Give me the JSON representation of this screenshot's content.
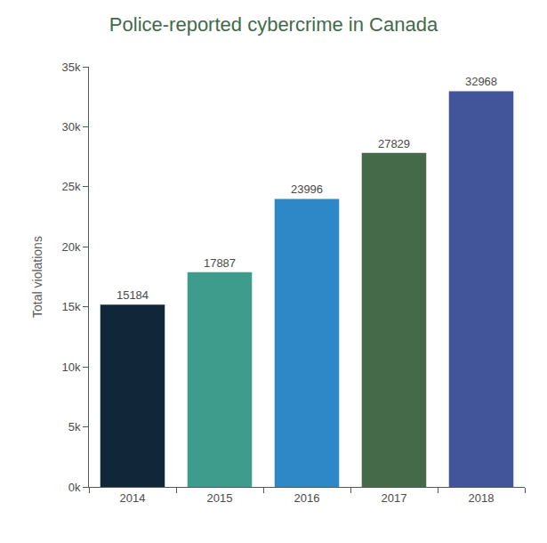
{
  "chart_data": {
    "type": "bar",
    "title": "Police-reported cybercrime in Canada",
    "y_label": "Total violations",
    "categories": [
      "2014",
      "2015",
      "2016",
      "2017",
      "2018"
    ],
    "values": [
      15184,
      17887,
      23996,
      27829,
      32968
    ],
    "colors": [
      "#12263a",
      "#3e9c8c",
      "#2e88c8",
      "#456a4a",
      "#43559a"
    ],
    "data_labels": true,
    "grid": false,
    "ylim": [
      0,
      35000
    ],
    "yticks": [
      {
        "value": 0,
        "label": "0k"
      },
      {
        "value": 5000,
        "label": "5k"
      },
      {
        "value": 10000,
        "label": "10k"
      },
      {
        "value": 15000,
        "label": "15k"
      },
      {
        "value": 20000,
        "label": "20k"
      },
      {
        "value": 25000,
        "label": "25k"
      },
      {
        "value": 30000,
        "label": "30k"
      },
      {
        "value": 35000,
        "label": "35k"
      }
    ]
  }
}
